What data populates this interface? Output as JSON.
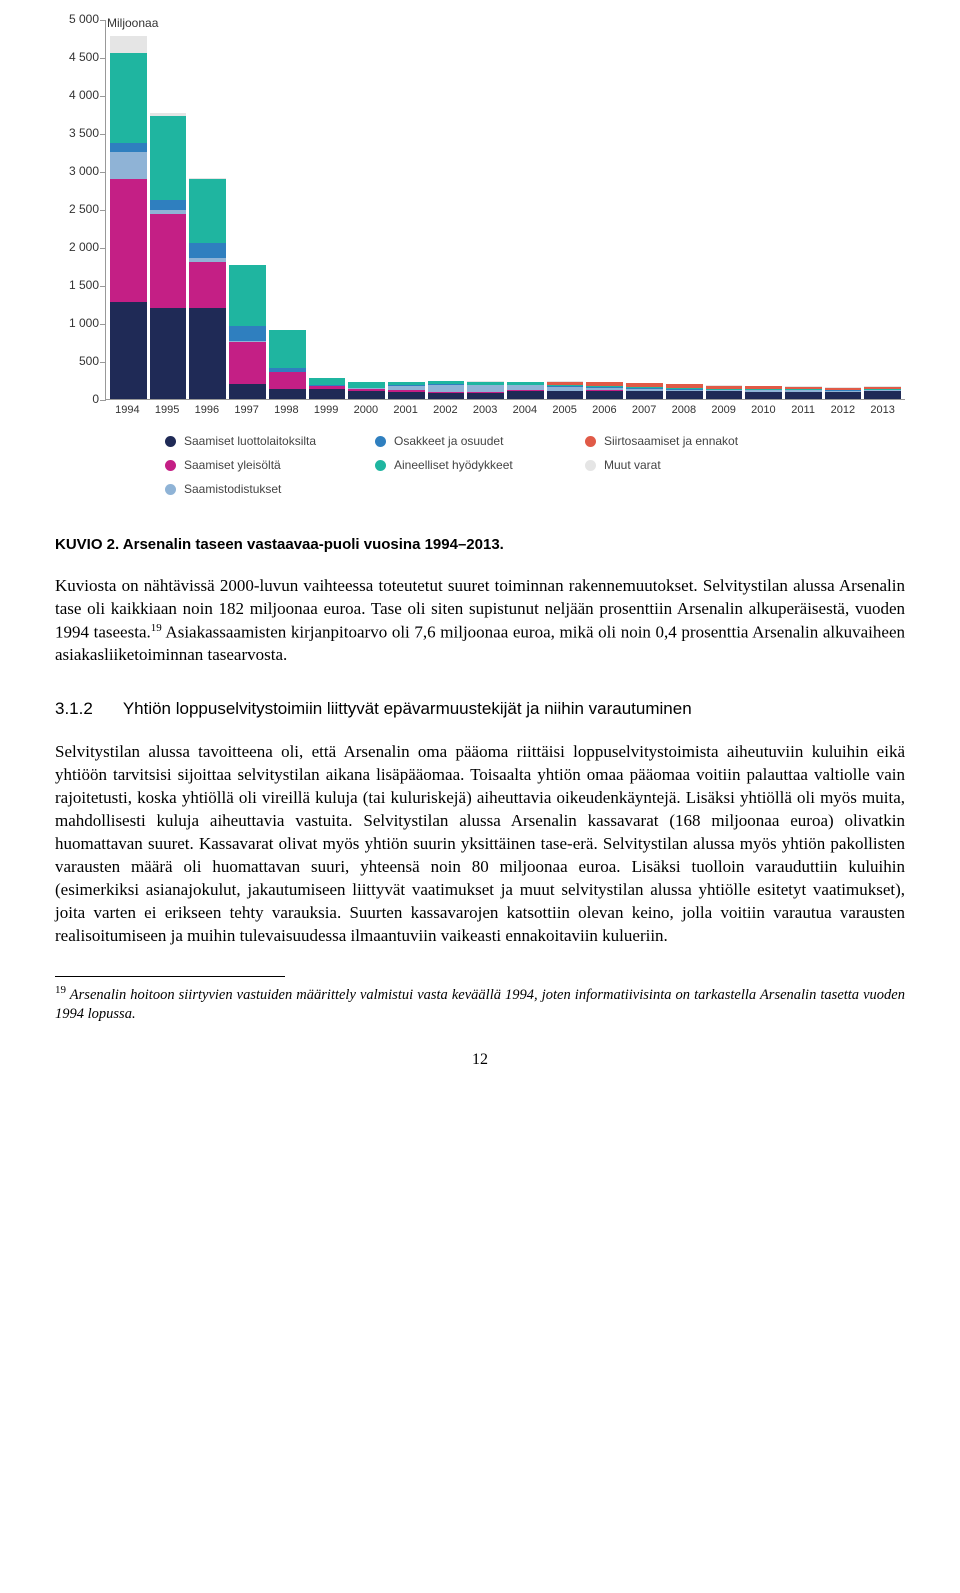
{
  "chart": {
    "type": "stacked-bar",
    "unit_label": "Miljoonaa",
    "ylim_max": 5000,
    "yticks": [
      0,
      500,
      1000,
      1500,
      2000,
      2500,
      3000,
      3500,
      4000,
      4500,
      5000
    ],
    "ytick_labels": [
      "0",
      "500",
      "1 000",
      "1 500",
      "2 000",
      "2 500",
      "3 000",
      "3 500",
      "4 000",
      "4 500",
      "5 000"
    ],
    "x_labels": [
      "1994",
      "1995",
      "1996",
      "1997",
      "1998",
      "1999",
      "2000",
      "2001",
      "2002",
      "2003",
      "2004",
      "2005",
      "2006",
      "2007",
      "2008",
      "2009",
      "2010",
      "2011",
      "2012",
      "2013"
    ],
    "series_colors": {
      "saamiset_luottolaitoksilta": "#1f2a56",
      "saamiset_yleisolta": "#c41f85",
      "saamistodistukset": "#8fb3d6",
      "osakkeet_ja_osuudet": "#2f7fbf",
      "aineelliset_hyodykkeet": "#1fb5a0",
      "siirtosaamiset_ja_ennakot": "#e05a47",
      "muut_varat": "#e5e5e5"
    },
    "series_order": [
      "saamiset_luottolaitoksilta",
      "saamiset_yleisolta",
      "saamistodistukset",
      "osakkeet_ja_osuudet",
      "aineelliset_hyodykkeet",
      "siirtosaamiset_ja_ennakot",
      "muut_varat"
    ],
    "legend": [
      {
        "key": "saamiset_luottolaitoksilta",
        "label": "Saamiset luottolaitoksilta"
      },
      {
        "key": "osakkeet_ja_osuudet",
        "label": "Osakkeet ja osuudet"
      },
      {
        "key": "siirtosaamiset_ja_ennakot",
        "label": "Siirtosaamiset ja ennakot"
      },
      {
        "key": "saamiset_yleisolta",
        "label": "Saamiset yleisöltä"
      },
      {
        "key": "aineelliset_hyodykkeet",
        "label": "Aineelliset hyödykkeet"
      },
      {
        "key": "muut_varat",
        "label": "Muut varat"
      },
      {
        "key": "saamistodistukset",
        "label": "Saamistodistukset"
      }
    ],
    "bars": [
      {
        "year": "1994",
        "v": {
          "saamiset_luottolaitoksilta": 1280,
          "saamiset_yleisolta": 1620,
          "saamistodistukset": 350,
          "osakkeet_ja_osuudet": 120,
          "aineelliset_hyodykkeet": 1180,
          "siirtosaamiset_ja_ennakot": 0,
          "muut_varat": 230
        }
      },
      {
        "year": "1995",
        "v": {
          "saamiset_luottolaitoksilta": 1200,
          "saamiset_yleisolta": 1230,
          "saamistodistukset": 60,
          "osakkeet_ja_osuudet": 130,
          "aineelliset_hyodykkeet": 1100,
          "siirtosaamiset_ja_ennakot": 0,
          "muut_varat": 50
        }
      },
      {
        "year": "1996",
        "v": {
          "saamiset_luottolaitoksilta": 1200,
          "saamiset_yleisolta": 600,
          "saamistodistukset": 50,
          "osakkeet_ja_osuudet": 200,
          "aineelliset_hyodykkeet": 850,
          "siirtosaamiset_ja_ennakot": 0,
          "muut_varat": 10
        }
      },
      {
        "year": "1997",
        "v": {
          "saamiset_luottolaitoksilta": 200,
          "saamiset_yleisolta": 550,
          "saamistodistukset": 10,
          "osakkeet_ja_osuudet": 200,
          "aineelliset_hyodykkeet": 800,
          "siirtosaamiset_ja_ennakot": 0,
          "muut_varat": 5
        }
      },
      {
        "year": "1998",
        "v": {
          "saamiset_luottolaitoksilta": 130,
          "saamiset_yleisolta": 220,
          "saamistodistukset": 5,
          "osakkeet_ja_osuudet": 50,
          "aineelliset_hyodykkeet": 500,
          "siirtosaamiset_ja_ennakot": 0,
          "muut_varat": 5
        }
      },
      {
        "year": "1999",
        "v": {
          "saamiset_luottolaitoksilta": 130,
          "saamiset_yleisolta": 40,
          "saamistodistukset": 5,
          "osakkeet_ja_osuudet": 10,
          "aineelliset_hyodykkeet": 90,
          "siirtosaamiset_ja_ennakot": 0,
          "muut_varat": 5
        }
      },
      {
        "year": "2000",
        "v": {
          "saamiset_luottolaitoksilta": 100,
          "saamiset_yleisolta": 30,
          "saamistodistukset": 10,
          "osakkeet_ja_osuudet": 10,
          "aineelliset_hyodykkeet": 70,
          "siirtosaamiset_ja_ennakot": 0,
          "muut_varat": 5
        }
      },
      {
        "year": "2001",
        "v": {
          "saamiset_luottolaitoksilta": 95,
          "saamiset_yleisolta": 20,
          "saamistodistukset": 60,
          "osakkeet_ja_osuudet": 10,
          "aineelliset_hyodykkeet": 40,
          "siirtosaamiset_ja_ennakot": 0,
          "muut_varat": 5
        }
      },
      {
        "year": "2002",
        "v": {
          "saamiset_luottolaitoksilta": 80,
          "saamiset_yleisolta": 15,
          "saamistodistukset": 90,
          "osakkeet_ja_osuudet": 10,
          "aineelliset_hyodykkeet": 40,
          "siirtosaamiset_ja_ennakot": 0,
          "muut_varat": 5
        }
      },
      {
        "year": "2003",
        "v": {
          "saamiset_luottolaitoksilta": 85,
          "saamiset_yleisolta": 10,
          "saamistodistukset": 85,
          "osakkeet_ja_osuudet": 10,
          "aineelliset_hyodykkeet": 40,
          "siirtosaamiset_ja_ennakot": 0,
          "muut_varat": 5
        }
      },
      {
        "year": "2004",
        "v": {
          "saamiset_luottolaitoksilta": 110,
          "saamiset_yleisolta": 10,
          "saamistodistukset": 60,
          "osakkeet_ja_osuudet": 10,
          "aineelliset_hyodykkeet": 30,
          "siirtosaamiset_ja_ennakot": 0,
          "muut_varat": 5
        }
      },
      {
        "year": "2005",
        "v": {
          "saamiset_luottolaitoksilta": 100,
          "saamiset_yleisolta": 10,
          "saamistodistukset": 50,
          "osakkeet_ja_osuudet": 10,
          "aineelliset_hyodykkeet": 20,
          "siirtosaamiset_ja_ennakot": 40,
          "muut_varat": 5
        }
      },
      {
        "year": "2006",
        "v": {
          "saamiset_luottolaitoksilta": 110,
          "saamiset_yleisolta": 5,
          "saamistodistukset": 30,
          "osakkeet_ja_osuudet": 10,
          "aineelliset_hyodykkeet": 20,
          "siirtosaamiset_ja_ennakot": 45,
          "muut_varat": 5
        }
      },
      {
        "year": "2007",
        "v": {
          "saamiset_luottolaitoksilta": 105,
          "saamiset_yleisolta": 5,
          "saamistodistukset": 25,
          "osakkeet_ja_osuudet": 10,
          "aineelliset_hyodykkeet": 20,
          "siirtosaamiset_ja_ennakot": 45,
          "muut_varat": 5
        }
      },
      {
        "year": "2008",
        "v": {
          "saamiset_luottolaitoksilta": 100,
          "saamiset_yleisolta": 5,
          "saamistodistukset": 20,
          "osakkeet_ja_osuudet": 5,
          "aineelliset_hyodykkeet": 15,
          "siirtosaamiset_ja_ennakot": 50,
          "muut_varat": 5
        }
      },
      {
        "year": "2009",
        "v": {
          "saamiset_luottolaitoksilta": 100,
          "saamiset_yleisolta": 3,
          "saamistodistukset": 15,
          "osakkeet_ja_osuudet": 5,
          "aineelliset_hyodykkeet": 15,
          "siirtosaamiset_ja_ennakot": 40,
          "muut_varat": 5
        }
      },
      {
        "year": "2010",
        "v": {
          "saamiset_luottolaitoksilta": 95,
          "saamiset_yleisolta": 3,
          "saamistodistukset": 15,
          "osakkeet_ja_osuudet": 5,
          "aineelliset_hyodykkeet": 15,
          "siirtosaamiset_ja_ennakot": 40,
          "muut_varat": 5
        }
      },
      {
        "year": "2011",
        "v": {
          "saamiset_luottolaitoksilta": 95,
          "saamiset_yleisolta": 3,
          "saamistodistukset": 15,
          "osakkeet_ja_osuudet": 5,
          "aineelliset_hyodykkeet": 15,
          "siirtosaamiset_ja_ennakot": 30,
          "muut_varat": 5
        }
      },
      {
        "year": "2012",
        "v": {
          "saamiset_luottolaitoksilta": 95,
          "saamiset_yleisolta": 3,
          "saamistodistukset": 10,
          "osakkeet_ja_osuudet": 5,
          "aineelliset_hyodykkeet": 10,
          "siirtosaamiset_ja_ennakot": 25,
          "muut_varat": 5
        }
      },
      {
        "year": "2013",
        "v": {
          "saamiset_luottolaitoksilta": 100,
          "saamiset_yleisolta": 3,
          "saamistodistukset": 10,
          "osakkeet_ja_osuudet": 5,
          "aineelliset_hyodykkeet": 10,
          "siirtosaamiset_ja_ennakot": 35,
          "muut_varat": 5
        }
      }
    ]
  },
  "caption": "KUVIO 2.  Arsenalin taseen vastaavaa-puoli vuosina 1994–2013.",
  "para1_a": "Kuviosta on nähtävissä 2000-luvun vaihteessa toteutetut suuret toiminnan rakennemuutokset. Selvitystilan alussa Arsenalin tase oli kaikkiaan noin 182 miljoonaa euroa. Tase oli siten supistunut neljään prosenttiin Arsenalin alkuperäisestä, vuoden 1994 taseesta.",
  "para1_sup": "19",
  "para1_b": " Asiakassaamisten kirjanpitoarvo oli 7,6 miljoonaa euroa, mikä oli noin 0,4 prosenttia Arsenalin alkuvaiheen asiakasliiketoiminnan tasearvosta.",
  "section_num": "3.1.2",
  "section_title": "Yhtiön loppuselvitystoimiin liittyvät epävarmuustekijät ja niihin varautuminen",
  "para2": "Selvitystilan alussa tavoitteena oli, että Arsenalin oma pääoma riittäisi loppuselvitystoimista aiheutuviin kuluihin eikä yhtiöön tarvitsisi sijoittaa selvitystilan aikana lisäpääomaa. Toisaalta yhtiön omaa pääomaa voitiin palauttaa valtiolle vain rajoitetusti, koska yhtiöllä oli vireillä kuluja (tai kuluriskejä) aiheuttavia oikeudenkäyntejä. Lisäksi yhtiöllä oli myös muita, mahdollisesti kuluja aiheuttavia vastuita. Selvitystilan alussa Arsenalin kassavarat (168 miljoonaa euroa) olivatkin huomattavan suuret. Kassavarat olivat myös yhtiön suurin yksittäinen tase-erä. Selvitystilan alussa myös yhtiön pakollisten varausten määrä oli huomattavan suuri, yhteensä noin 80 miljoonaa euroa. Lisäksi tuolloin varauduttiin kuluihin (esimerkiksi asianajokulut, jakautumiseen liittyvät vaatimukset ja muut selvitystilan alussa yhtiölle esitetyt vaatimukset), joita varten ei erikseen tehty varauksia. Suurten kassavarojen katsottiin olevan keino, jolla voitiin varautua varausten realisoitumiseen ja muihin tulevaisuudessa ilmaantuviin vaikeasti ennakoitaviin kulueriin.",
  "footnote_num": "19",
  "footnote_text": " Arsenalin hoitoon siirtyvien vastuiden määrittely valmistui vasta keväällä 1994, joten informatiivisinta on tarkastella Arsenalin tasetta vuoden 1994 lopussa.",
  "page_number": "12"
}
